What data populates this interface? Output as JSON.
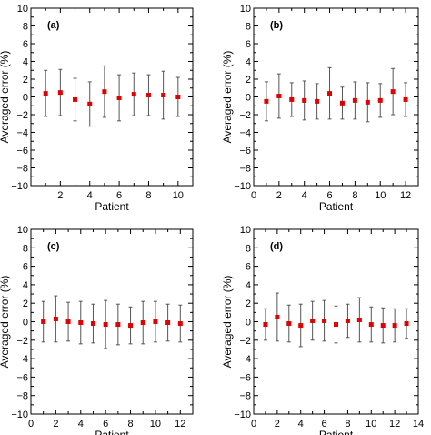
{
  "chart_data": [
    {
      "type": "scatter",
      "panel_label": "(a)",
      "xlabel": "Patient",
      "ylabel": "Averaged error (%)",
      "xlim": [
        0,
        11
      ],
      "ylim": [
        -10,
        10
      ],
      "xticks": [
        2,
        4,
        6,
        8,
        10
      ],
      "yticks": [
        -10,
        -8,
        -6,
        -4,
        -2,
        0,
        2,
        4,
        6,
        8,
        10
      ],
      "x": [
        1,
        2,
        3,
        4,
        5,
        6,
        7,
        8,
        9,
        10
      ],
      "y": [
        0.4,
        0.5,
        -0.3,
        -0.8,
        0.6,
        -0.1,
        0.3,
        0.2,
        0.2,
        0.0
      ],
      "err": [
        2.6,
        2.6,
        2.4,
        2.5,
        2.9,
        2.6,
        2.4,
        2.3,
        2.7,
        2.2
      ]
    },
    {
      "type": "scatter",
      "panel_label": "(b)",
      "xlabel": "Patient",
      "ylabel": "Averaged error (%)",
      "xlim": [
        0,
        13
      ],
      "ylim": [
        -10,
        10
      ],
      "xticks": [
        0,
        2,
        4,
        6,
        8,
        10,
        12
      ],
      "yticks": [
        -10,
        -8,
        -6,
        -4,
        -2,
        0,
        2,
        4,
        6,
        8,
        10
      ],
      "x": [
        1,
        2,
        3,
        4,
        5,
        6,
        7,
        8,
        9,
        10,
        11,
        12
      ],
      "y": [
        -0.5,
        0.1,
        -0.3,
        -0.4,
        -0.5,
        0.4,
        -0.7,
        -0.4,
        -0.6,
        -0.4,
        0.6,
        -0.3
      ],
      "err": [
        2.2,
        2.5,
        1.9,
        2.2,
        2.0,
        2.9,
        1.8,
        2.1,
        2.2,
        1.9,
        2.6,
        1.9
      ]
    },
    {
      "type": "scatter",
      "panel_label": "(c)",
      "xlabel": "Patient",
      "ylabel": "Averaged error (%)",
      "xlim": [
        0,
        13
      ],
      "ylim": [
        -10,
        10
      ],
      "xticks": [
        0,
        2,
        4,
        6,
        8,
        10,
        12
      ],
      "yticks": [
        -10,
        -8,
        -6,
        -4,
        -2,
        0,
        2,
        4,
        6,
        8,
        10
      ],
      "x": [
        1,
        2,
        3,
        4,
        5,
        6,
        7,
        8,
        9,
        10,
        11,
        12
      ],
      "y": [
        0.0,
        0.3,
        0.0,
        -0.1,
        -0.2,
        -0.3,
        -0.3,
        -0.4,
        -0.1,
        0.0,
        -0.1,
        -0.2
      ],
      "err": [
        2.2,
        2.5,
        2.1,
        2.3,
        2.1,
        2.6,
        2.2,
        2.0,
        2.3,
        2.2,
        2.0,
        2.0
      ]
    },
    {
      "type": "scatter",
      "panel_label": "(d)",
      "xlabel": "Patient",
      "ylabel": "Averaged error (%)",
      "xlim": [
        0,
        14
      ],
      "ylim": [
        -10,
        10
      ],
      "xticks": [
        0,
        2,
        4,
        6,
        8,
        10,
        12,
        14
      ],
      "yticks": [
        -10,
        -8,
        -6,
        -4,
        -2,
        0,
        2,
        4,
        6,
        8,
        10
      ],
      "x": [
        1,
        2,
        3,
        4,
        5,
        6,
        7,
        8,
        9,
        10,
        11,
        12,
        13
      ],
      "y": [
        -0.3,
        0.5,
        -0.2,
        -0.4,
        0.1,
        0.1,
        -0.3,
        0.1,
        0.2,
        -0.3,
        -0.4,
        -0.4,
        -0.2
      ],
      "err": [
        1.7,
        2.6,
        2.0,
        2.3,
        2.1,
        2.2,
        2.0,
        1.8,
        2.4,
        1.9,
        1.9,
        1.8,
        1.6
      ]
    }
  ],
  "colors": {
    "marker": "#e00000",
    "errorbar": "#555555",
    "axis": "#000000"
  }
}
